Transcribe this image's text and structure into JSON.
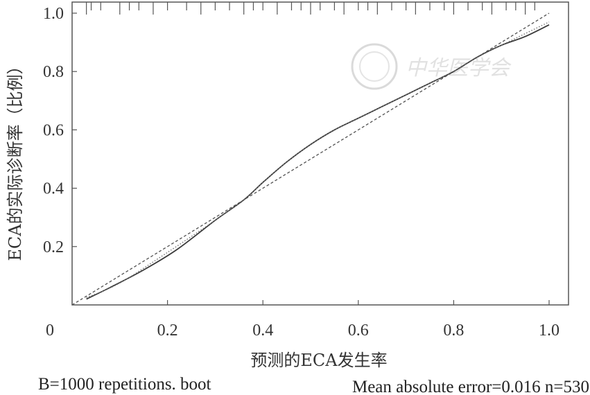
{
  "chart_data": {
    "type": "line",
    "xlabel": "预测的ECA发生率",
    "ylabel": "ECA的实际诊断率（比例）",
    "xlim": [
      0,
      1.0
    ],
    "ylim": [
      0,
      1.0
    ],
    "x_ticks": [
      "0",
      "0.2",
      "0.4",
      "0.6",
      "0.8",
      "1.0"
    ],
    "y_ticks": [
      "0.2",
      "0.4",
      "0.6",
      "0.8",
      "1.0"
    ],
    "grid": false,
    "series": [
      {
        "style": "solid",
        "color": "#3a3a3a",
        "x": [
          0.03,
          0.08,
          0.15,
          0.22,
          0.3,
          0.36,
          0.4,
          0.45,
          0.5,
          0.55,
          0.6,
          0.65,
          0.7,
          0.75,
          0.8,
          0.85,
          0.9,
          0.95,
          1.0
        ],
        "y": [
          0.02,
          0.06,
          0.12,
          0.19,
          0.29,
          0.36,
          0.42,
          0.49,
          0.55,
          0.6,
          0.64,
          0.68,
          0.72,
          0.76,
          0.8,
          0.85,
          0.89,
          0.92,
          0.96
        ]
      },
      {
        "style": "dotted",
        "color": "#707070",
        "x": [
          0.03,
          0.1,
          0.2,
          0.3,
          0.36,
          0.4,
          0.45,
          0.5,
          0.55,
          0.6,
          0.65,
          0.7,
          0.75,
          0.8,
          0.85,
          0.9,
          0.95,
          1.0
        ],
        "y": [
          0.025,
          0.075,
          0.18,
          0.29,
          0.36,
          0.42,
          0.49,
          0.55,
          0.6,
          0.64,
          0.68,
          0.72,
          0.76,
          0.8,
          0.85,
          0.89,
          0.93,
          0.97
        ]
      },
      {
        "style": "dashed",
        "color": "#505050",
        "x": [
          0.0,
          1.0
        ],
        "y": [
          0.0,
          1.0
        ]
      }
    ],
    "rug_x": [
      0.03,
      0.04,
      0.06,
      0.1,
      0.12,
      0.14,
      0.17,
      0.2,
      0.24,
      0.27,
      0.3,
      0.33,
      0.36,
      0.38,
      0.4,
      0.43,
      0.46,
      0.48,
      0.5,
      0.52,
      0.55,
      0.57,
      0.6,
      0.62,
      0.64,
      0.67,
      0.7,
      0.72,
      0.75,
      0.78,
      0.8,
      0.83,
      0.86,
      0.88,
      0.91,
      0.93,
      0.95,
      0.97
    ]
  },
  "footer": {
    "left": "B=1000 repetitions. boot",
    "right": "Mean absolute error=0.016 n=530"
  },
  "watermark": {
    "text": "中华医学会",
    "seal_text": "中华医学会"
  }
}
